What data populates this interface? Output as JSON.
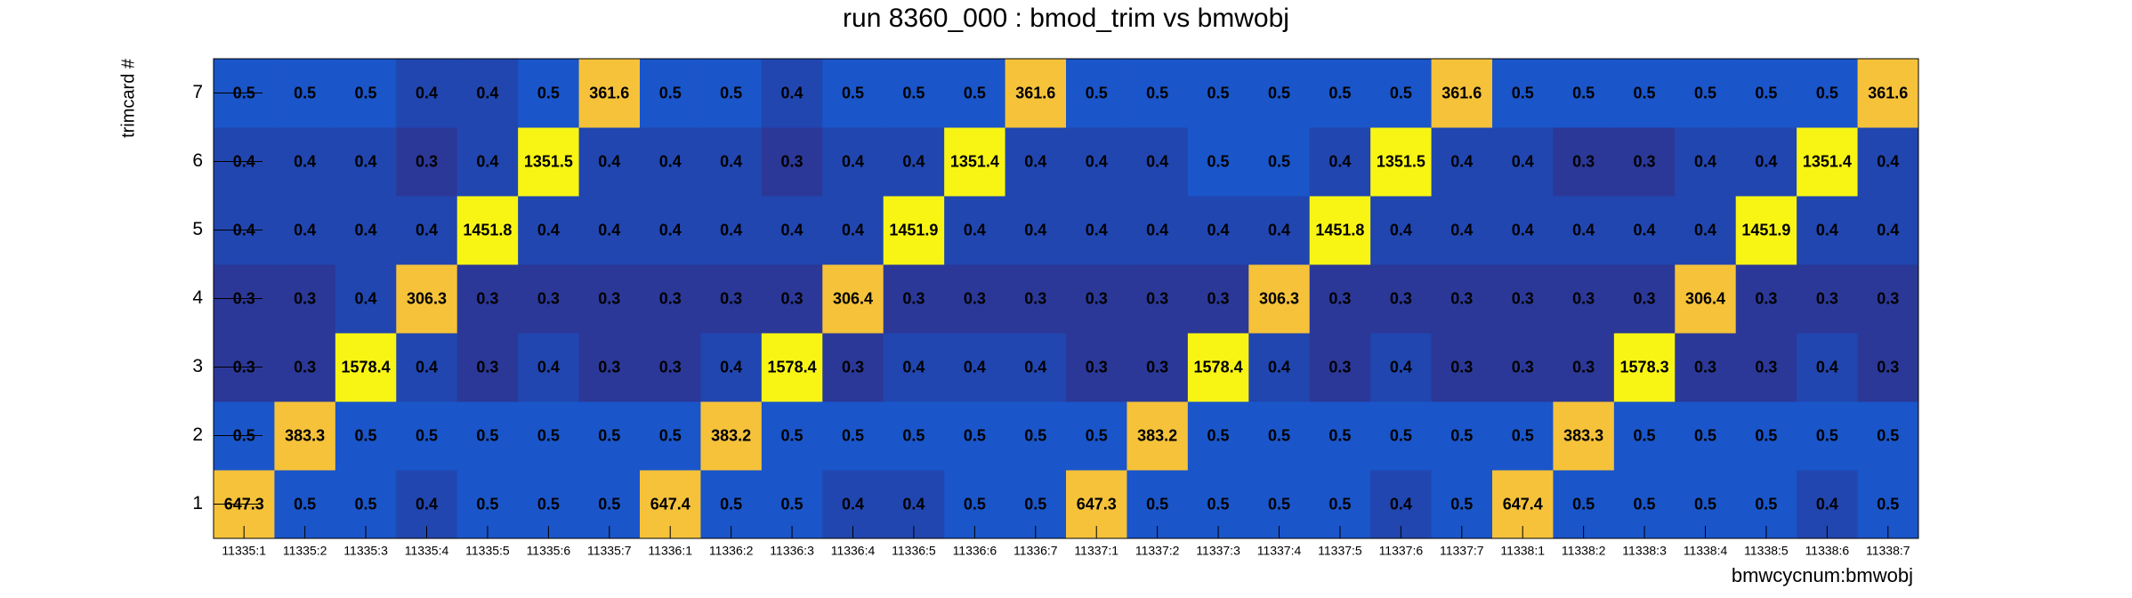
{
  "chart_data": {
    "type": "heatmap",
    "title": "run 8360_000 : bmod_trim vs bmwobj",
    "x_label": "bmwcycnum:bmwobj",
    "y_label": "trimcard #",
    "x_categories": [
      "11335:1",
      "11335:2",
      "11335:3",
      "11335:4",
      "11335:5",
      "11335:6",
      "11335:7",
      "11336:1",
      "11336:2",
      "11336:3",
      "11336:4",
      "11336:5",
      "11336:6",
      "11336:7",
      "11337:1",
      "11337:2",
      "11337:3",
      "11337:4",
      "11337:5",
      "11337:6",
      "11337:7",
      "11338:1",
      "11338:2",
      "11338:3",
      "11338:4",
      "11338:5",
      "11338:6",
      "11338:7"
    ],
    "y_categories": [
      1,
      2,
      3,
      4,
      5,
      6,
      7
    ],
    "z": [
      [
        647.3,
        0.5,
        0.5,
        0.4,
        0.5,
        0.5,
        0.5,
        647.4,
        0.5,
        0.5,
        0.4,
        0.4,
        0.5,
        0.5,
        647.3,
        0.5,
        0.5,
        0.5,
        0.5,
        0.4,
        0.5,
        647.4,
        0.5,
        0.5,
        0.5,
        0.5,
        0.4,
        0.5
      ],
      [
        0.5,
        383.3,
        0.5,
        0.5,
        0.5,
        0.5,
        0.5,
        0.5,
        383.2,
        0.5,
        0.5,
        0.5,
        0.5,
        0.5,
        0.5,
        383.2,
        0.5,
        0.5,
        0.5,
        0.5,
        0.5,
        0.5,
        383.3,
        0.5,
        0.5,
        0.5,
        0.5,
        0.5
      ],
      [
        0.3,
        0.3,
        1578.4,
        0.4,
        0.3,
        0.4,
        0.3,
        0.3,
        0.4,
        1578.4,
        0.3,
        0.4,
        0.4,
        0.4,
        0.3,
        0.3,
        1578.4,
        0.4,
        0.3,
        0.4,
        0.3,
        0.3,
        0.3,
        1578.3,
        0.3,
        0.3,
        0.4,
        0.3
      ],
      [
        0.3,
        0.3,
        0.4,
        306.3,
        0.3,
        0.3,
        0.3,
        0.3,
        0.3,
        0.3,
        306.4,
        0.3,
        0.3,
        0.3,
        0.3,
        0.3,
        0.3,
        306.3,
        0.3,
        0.3,
        0.3,
        0.3,
        0.3,
        0.3,
        306.4,
        0.3,
        0.3,
        0.3
      ],
      [
        0.4,
        0.4,
        0.4,
        0.4,
        1451.8,
        0.4,
        0.4,
        0.4,
        0.4,
        0.4,
        0.4,
        1451.9,
        0.4,
        0.4,
        0.4,
        0.4,
        0.4,
        0.4,
        1451.8,
        0.4,
        0.4,
        0.4,
        0.4,
        0.4,
        0.4,
        1451.9,
        0.4,
        0.4
      ],
      [
        0.4,
        0.4,
        0.4,
        0.3,
        0.4,
        1351.5,
        0.4,
        0.4,
        0.4,
        0.3,
        0.4,
        0.4,
        1351.4,
        0.4,
        0.4,
        0.4,
        0.5,
        0.5,
        0.4,
        1351.5,
        0.4,
        0.4,
        0.3,
        0.3,
        0.4,
        0.4,
        1351.4,
        0.4
      ],
      [
        0.5,
        0.5,
        0.5,
        0.4,
        0.4,
        0.5,
        361.6,
        0.5,
        0.5,
        0.4,
        0.5,
        0.5,
        0.5,
        361.6,
        0.5,
        0.5,
        0.5,
        0.5,
        0.5,
        0.5,
        361.6,
        0.5,
        0.5,
        0.5,
        0.5,
        0.5,
        0.5,
        361.6
      ]
    ]
  }
}
